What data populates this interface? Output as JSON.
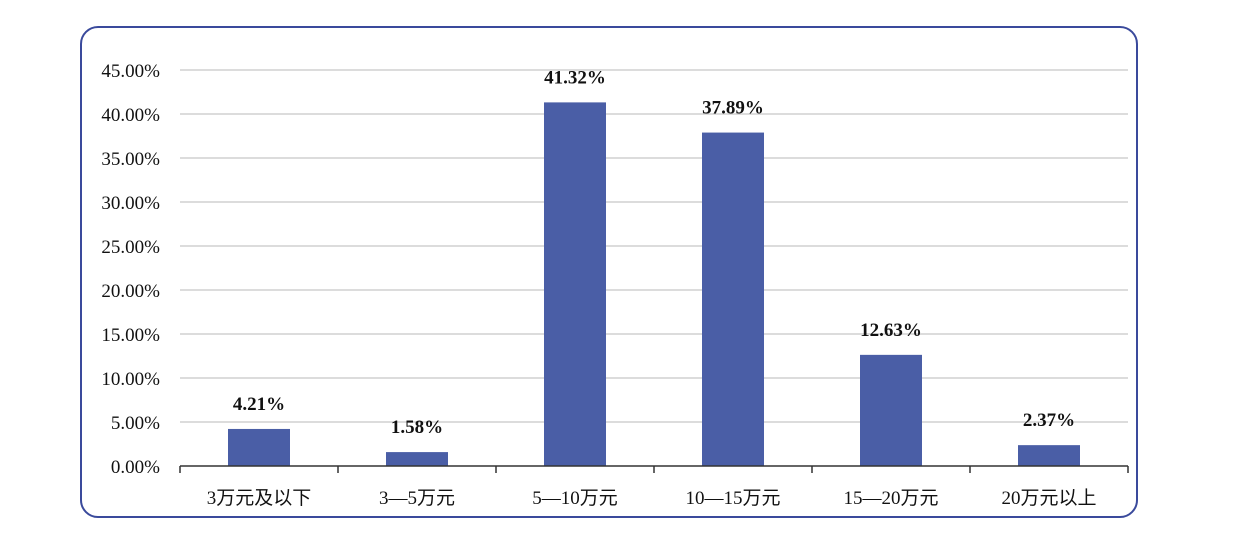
{
  "chart_data": {
    "type": "bar",
    "title": "",
    "xlabel": "",
    "ylabel": "",
    "categories": [
      "3万元及以下",
      "3—5万元",
      "5—10万元",
      "10—15万元",
      "15—20万元",
      "20万元以上"
    ],
    "values": [
      4.21,
      1.58,
      41.32,
      37.89,
      12.63,
      2.37
    ],
    "data_labels": [
      "4.21%",
      "1.58%",
      "41.32%",
      "37.89%",
      "12.63%",
      "2.37%"
    ],
    "yticks": [
      0,
      5,
      10,
      15,
      20,
      25,
      30,
      35,
      40,
      45
    ],
    "ytick_labels": [
      "0.00%",
      "5.00%",
      "10.00%",
      "15.00%",
      "20.00%",
      "25.00%",
      "30.00%",
      "35.00%",
      "40.00%",
      "45.00%"
    ],
    "ylim": [
      0,
      45
    ],
    "grid": true,
    "legend": "none",
    "bar_color": "#4a5ea6",
    "frame_color": "#3a4a9c"
  }
}
